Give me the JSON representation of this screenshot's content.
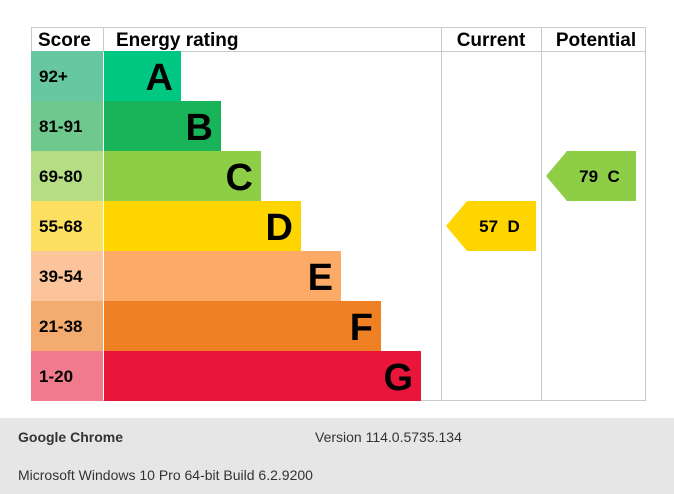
{
  "chart_data": {
    "type": "bar",
    "headers": {
      "score": "Score",
      "rating": "Energy rating",
      "current": "Current",
      "potential": "Potential"
    },
    "bands": [
      {
        "score": "92+",
        "letter": "A",
        "color": "#00c781",
        "score_bg": "#66c7a0"
      },
      {
        "score": "81-91",
        "letter": "B",
        "color": "#19b459",
        "score_bg": "#6fc98e"
      },
      {
        "score": "69-80",
        "letter": "C",
        "color": "#8dce46",
        "score_bg": "#b5de84"
      },
      {
        "score": "55-68",
        "letter": "D",
        "color": "#ffd500",
        "score_bg": "#fde060"
      },
      {
        "score": "39-54",
        "letter": "E",
        "color": "#fcaa65",
        "score_bg": "#fcc49a"
      },
      {
        "score": "21-38",
        "letter": "F",
        "color": "#ef8023",
        "score_bg": "#f4ab70"
      },
      {
        "score": "1-20",
        "letter": "G",
        "color": "#e9153b",
        "score_bg": "#f07b8c"
      }
    ],
    "current": {
      "value": 57,
      "letter": "D",
      "label": "57  D",
      "color": "#ffd500"
    },
    "potential": {
      "value": 79,
      "letter": "C",
      "label": "79  C",
      "color": "#8dce46"
    }
  },
  "footer": {
    "browser": "Google Chrome",
    "version": "Version 114.0.5735.134",
    "os": "Microsoft Windows 10 Pro 64-bit Build 6.2.9200"
  }
}
